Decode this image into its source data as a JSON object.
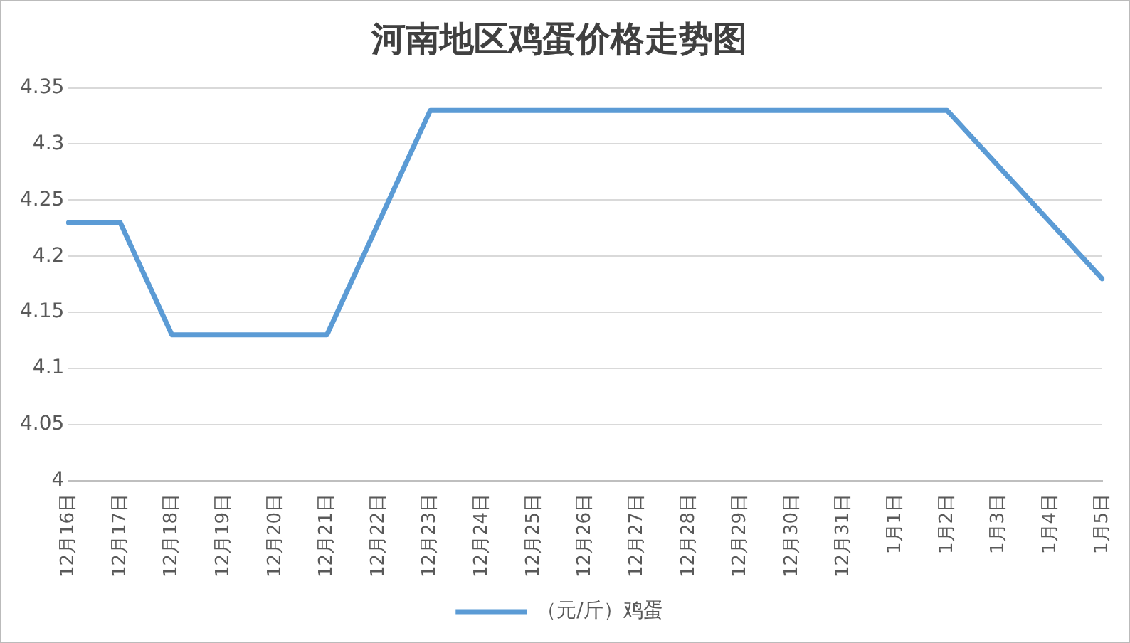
{
  "chart_data": {
    "type": "line",
    "title": "河南地区鸡蛋价格走势图",
    "categories": [
      "12月16日",
      "12月17日",
      "12月18日",
      "12月19日",
      "12月20日",
      "12月21日",
      "12月22日",
      "12月23日",
      "12月24日",
      "12月25日",
      "12月26日",
      "12月27日",
      "12月28日",
      "12月29日",
      "12月30日",
      "12月31日",
      "1月1日",
      "1月2日",
      "1月3日",
      "1月4日",
      "1月5日"
    ],
    "series": [
      {
        "name": "（元/斤）鸡蛋",
        "color": "#5b9bd5",
        "values": [
          4.23,
          4.23,
          4.13,
          4.13,
          4.13,
          4.13,
          4.23,
          4.33,
          4.33,
          4.33,
          4.33,
          4.33,
          4.33,
          4.33,
          4.33,
          4.33,
          4.33,
          4.33,
          4.28,
          4.23,
          4.18
        ]
      }
    ],
    "ylim": [
      4,
      4.35
    ],
    "yticks": [
      4,
      4.05,
      4.1,
      4.15,
      4.2,
      4.25,
      4.3,
      4.35
    ],
    "grid": "y",
    "legend": "bottom",
    "marker": "none",
    "line_style": "solid"
  }
}
